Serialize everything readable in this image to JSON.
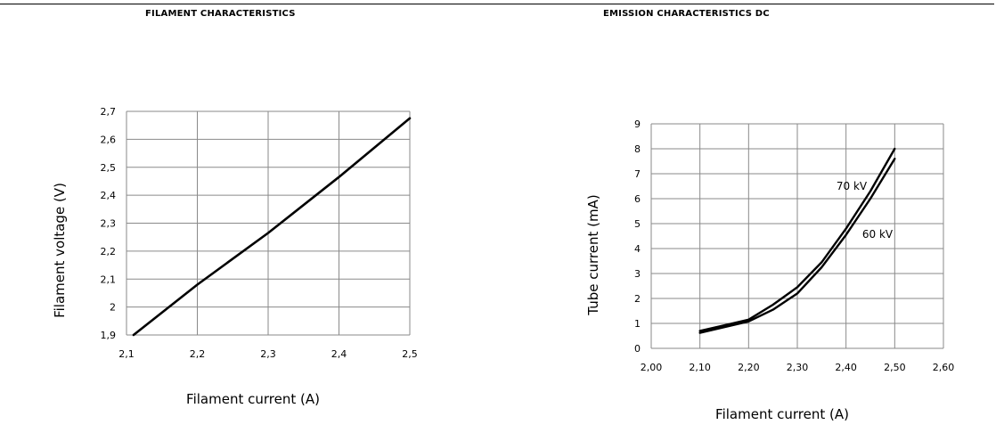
{
  "chart_data": [
    {
      "type": "line",
      "title": "FILAMENT CHARACTERISTICS",
      "xlabel": "Filament current (A)",
      "ylabel": "Filament voltage (V)",
      "xlim": [
        2.1,
        2.5
      ],
      "ylim": [
        1.9,
        2.7
      ],
      "xticks": [
        "2,1",
        "2,2",
        "2,3",
        "2,4",
        "2,5"
      ],
      "yticks": [
        "1,9",
        "2",
        "2,1",
        "2,2",
        "2,3",
        "2,4",
        "2,5",
        "2,6",
        "2,7"
      ],
      "grid": true,
      "series": [
        {
          "x": [
            2.11,
            2.2,
            2.3,
            2.4,
            2.5
          ],
          "y": [
            1.9,
            2.08,
            2.265,
            2.465,
            2.675
          ]
        }
      ]
    },
    {
      "type": "line",
      "title": "EMISSION CHARACTERISTICS DC",
      "xlabel": "Filament current (A)",
      "ylabel": "Tube current (mA)",
      "xlim": [
        2.0,
        2.6
      ],
      "ylim": [
        0,
        9
      ],
      "xticks": [
        "2,00",
        "2,10",
        "2,20",
        "2,30",
        "2,40",
        "2,50",
        "2,60"
      ],
      "yticks": [
        "0",
        "1",
        "2",
        "3",
        "4",
        "5",
        "6",
        "7",
        "8",
        "9"
      ],
      "grid": true,
      "series": [
        {
          "name": "70 kV",
          "x": [
            2.1,
            2.15,
            2.2,
            2.25,
            2.3,
            2.35,
            2.4,
            2.45,
            2.5
          ],
          "y": [
            0.7,
            0.92,
            1.15,
            1.75,
            2.45,
            3.45,
            4.8,
            6.3,
            8.0
          ]
        },
        {
          "name": "60 kV",
          "x": [
            2.1,
            2.15,
            2.2,
            2.25,
            2.3,
            2.35,
            2.4,
            2.45,
            2.5
          ],
          "y": [
            0.62,
            0.85,
            1.08,
            1.55,
            2.2,
            3.25,
            4.55,
            6.0,
            7.6
          ]
        }
      ]
    }
  ]
}
